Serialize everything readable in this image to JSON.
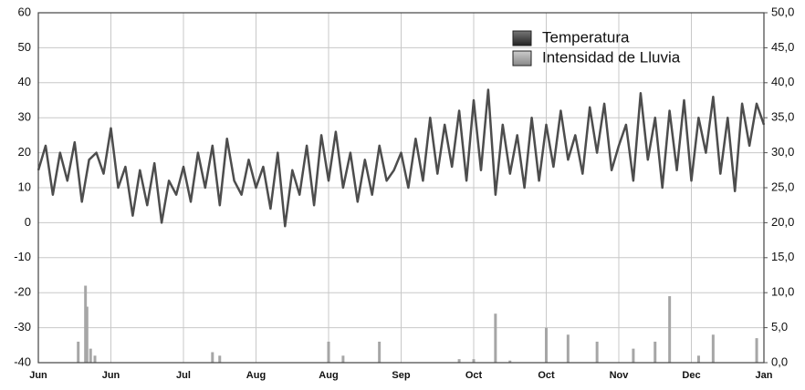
{
  "chart_data": {
    "type": "line",
    "xlim": [
      0,
      10
    ],
    "xticks": [
      {
        "value": 0,
        "label": "Jun"
      },
      {
        "value": 1,
        "label": "Jun"
      },
      {
        "value": 2,
        "label": "Jul"
      },
      {
        "value": 3,
        "label": "Aug"
      },
      {
        "value": 4,
        "label": "Aug"
      },
      {
        "value": 5,
        "label": "Sep"
      },
      {
        "value": 6,
        "label": "Oct"
      },
      {
        "value": 7,
        "label": "Oct"
      },
      {
        "value": 8,
        "label": "Nov"
      },
      {
        "value": 9,
        "label": "Dec"
      },
      {
        "value": 10,
        "label": "Jan"
      }
    ],
    "ylim": [
      -40,
      60
    ],
    "yticks": [
      -40,
      -30,
      -20,
      -10,
      0,
      10,
      20,
      30,
      40,
      50,
      60
    ],
    "y2lim": [
      0,
      50
    ],
    "y2ticks": [
      {
        "value": 0,
        "label": "0,0"
      },
      {
        "value": 5,
        "label": "5,0"
      },
      {
        "value": 10,
        "label": "10,0"
      },
      {
        "value": 15,
        "label": "15,0"
      },
      {
        "value": 20,
        "label": "20,0"
      },
      {
        "value": 25,
        "label": "25,0"
      },
      {
        "value": 30,
        "label": "30,0"
      },
      {
        "value": 35,
        "label": "35,0"
      },
      {
        "value": 40,
        "label": "40,0"
      },
      {
        "value": 45,
        "label": "45,0"
      },
      {
        "value": 50,
        "label": "50,0"
      }
    ],
    "grid": true,
    "legend": "upper right",
    "series": [
      {
        "name": "Temperatura",
        "color": "#4d4d4d",
        "type": "line",
        "x": [
          0.0,
          0.1,
          0.2,
          0.3,
          0.4,
          0.5,
          0.6,
          0.7,
          0.8,
          0.9,
          1.0,
          1.1,
          1.2,
          1.3,
          1.4,
          1.5,
          1.6,
          1.7,
          1.8,
          1.9,
          2.0,
          2.1,
          2.2,
          2.3,
          2.4,
          2.5,
          2.6,
          2.7,
          2.8,
          2.9,
          3.0,
          3.1,
          3.2,
          3.3,
          3.4,
          3.5,
          3.6,
          3.7,
          3.8,
          3.9,
          4.0,
          4.1,
          4.2,
          4.3,
          4.4,
          4.5,
          4.6,
          4.7,
          4.8,
          4.9,
          5.0,
          5.1,
          5.2,
          5.3,
          5.4,
          5.5,
          5.6,
          5.7,
          5.8,
          5.9,
          6.0,
          6.1,
          6.2,
          6.3,
          6.4,
          6.5,
          6.6,
          6.7,
          6.8,
          6.9,
          7.0,
          7.1,
          7.2,
          7.3,
          7.4,
          7.5,
          7.6,
          7.7,
          7.8,
          7.9,
          8.0,
          8.1,
          8.2,
          8.3,
          8.4,
          8.5,
          8.6,
          8.7,
          8.8,
          8.9,
          9.0,
          9.1,
          9.2,
          9.3,
          9.4,
          9.5,
          9.6,
          9.7,
          9.8,
          9.9,
          10.0
        ],
        "values": [
          15,
          22,
          8,
          20,
          12,
          23,
          6,
          18,
          20,
          14,
          27,
          10,
          16,
          2,
          15,
          5,
          17,
          0,
          12,
          8,
          16,
          6,
          20,
          10,
          22,
          5,
          24,
          12,
          8,
          18,
          10,
          16,
          4,
          20,
          -1,
          15,
          8,
          22,
          5,
          25,
          12,
          26,
          10,
          20,
          6,
          18,
          8,
          22,
          12,
          15,
          20,
          10,
          24,
          12,
          30,
          14,
          28,
          16,
          32,
          12,
          35,
          15,
          38,
          8,
          28,
          14,
          25,
          10,
          30,
          12,
          28,
          16,
          32,
          18,
          25,
          14,
          33,
          20,
          34,
          15,
          22,
          28,
          12,
          37,
          18,
          30,
          10,
          32,
          15,
          35,
          12,
          30,
          20,
          36,
          14,
          30,
          9,
          34,
          22,
          34,
          28
        ]
      },
      {
        "name": "Intensidad de Lluvia",
        "color": "#a6a6a6",
        "type": "bar",
        "axis": "y2",
        "x": [
          0.55,
          0.65,
          0.67,
          0.72,
          0.78,
          2.4,
          2.5,
          4.0,
          4.2,
          4.7,
          5.8,
          6.0,
          6.3,
          6.5,
          7.0,
          7.3,
          7.7,
          8.2,
          8.5,
          8.7,
          9.1,
          9.3,
          9.9
        ],
        "values": [
          3,
          11,
          8,
          2,
          1,
          1.5,
          1,
          3,
          1,
          3,
          0.5,
          0.5,
          7,
          0.3,
          5,
          4,
          3,
          2,
          3,
          9.5,
          1,
          4,
          3.5
        ]
      }
    ]
  }
}
